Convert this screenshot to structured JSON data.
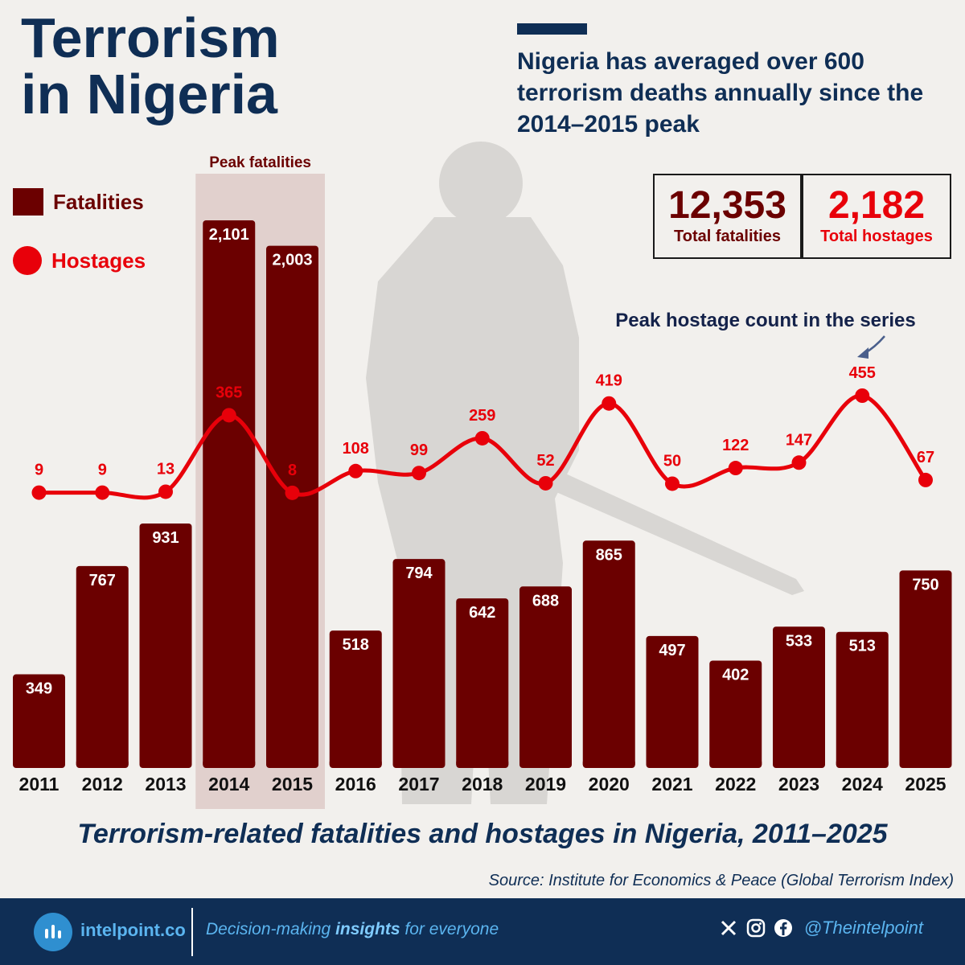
{
  "title_line1": "Terrorism",
  "title_line2": "in Nigeria",
  "subtitle": "Nigeria has averaged over 600 terrorism deaths annually since the 2014–2015 peak",
  "legend": {
    "fatalities": "Fatalities",
    "hostages": "Hostages"
  },
  "kpis": {
    "fatalities_value": "12,353",
    "fatalities_label": "Total fatalities",
    "hostages_value": "2,182",
    "hostages_label": "Total hostages"
  },
  "caption": "Terrorism-related fatalities and hostages in Nigeria, 2011–2025",
  "source": "Source: Institute for Economics & Peace (Global Terrorism Index)",
  "footer": {
    "brand": "intelpoint.co",
    "tagline_pre": "Decision-making ",
    "tagline_bold": "insights",
    "tagline_post": " for everyone",
    "handle": "@Theintelpoint",
    "icons": [
      "x-icon",
      "instagram-icon",
      "facebook-icon"
    ]
  },
  "colors": {
    "navy": "#0f2e55",
    "fatalities": "#6b0000",
    "hostages": "#e8000a",
    "highlight": "#dbc5c2"
  },
  "chart_data": {
    "type": "bar",
    "categories": [
      "2011",
      "2012",
      "2013",
      "2014",
      "2015",
      "2016",
      "2017",
      "2018",
      "2019",
      "2020",
      "2021",
      "2022",
      "2023",
      "2024",
      "2025"
    ],
    "series": [
      {
        "name": "Fatalities",
        "type": "bar",
        "values": [
          349,
          767,
          931,
          2101,
          2003,
          518,
          794,
          642,
          688,
          865,
          497,
          402,
          533,
          513,
          750
        ]
      },
      {
        "name": "Hostages",
        "type": "line",
        "values": [
          9,
          9,
          13,
          365,
          8,
          108,
          99,
          259,
          52,
          419,
          50,
          122,
          147,
          455,
          67
        ]
      }
    ],
    "highlight": {
      "label": "Peak fatalities",
      "categories": [
        "2014",
        "2015"
      ]
    },
    "annotation": {
      "text": "Peak hostage count in the series",
      "category": "2024"
    }
  }
}
